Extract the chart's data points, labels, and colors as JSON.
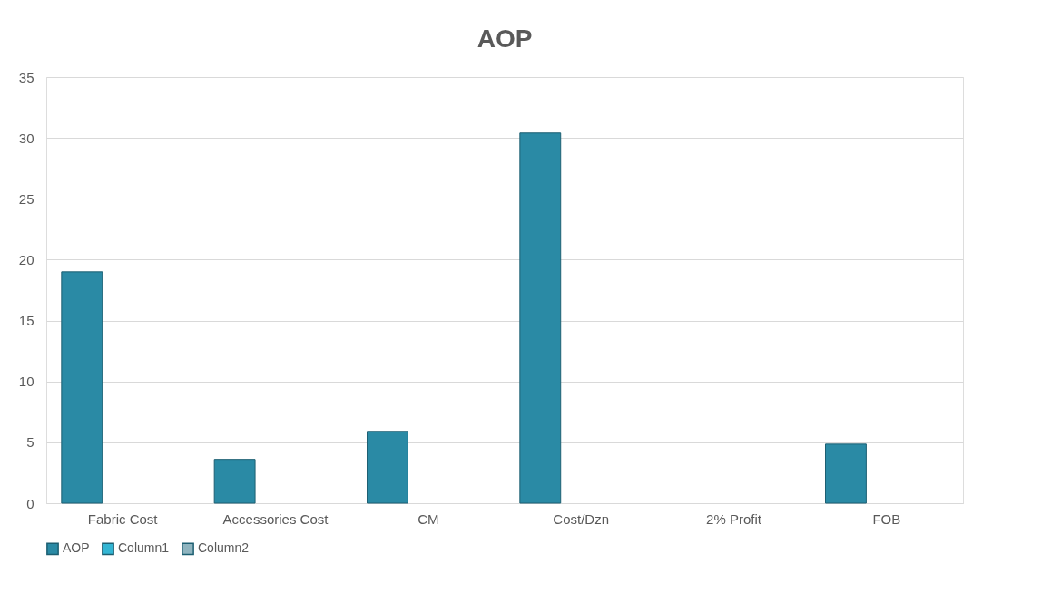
{
  "chart_data": {
    "type": "bar",
    "title": "AOP",
    "categories": [
      "Fabric Cost",
      "Accessories Cost",
      "CM",
      "Cost/Dzn",
      "2% Profit",
      "FOB"
    ],
    "series": [
      {
        "name": "AOP",
        "color": "#2a8aa5",
        "values": [
          19,
          3.6,
          5.9,
          30.4,
          null,
          4.85
        ]
      },
      {
        "name": "Column1",
        "color": "#33b5d3",
        "values": [
          null,
          null,
          null,
          null,
          null,
          null
        ]
      },
      {
        "name": "Column2",
        "color": "#8fb4bf",
        "values": [
          null,
          null,
          null,
          null,
          null,
          null
        ]
      }
    ],
    "ylim": [
      0,
      35
    ],
    "yticks": [
      0,
      5,
      10,
      15,
      20,
      25,
      30,
      35
    ],
    "grid": "y",
    "legend": "bottom"
  }
}
